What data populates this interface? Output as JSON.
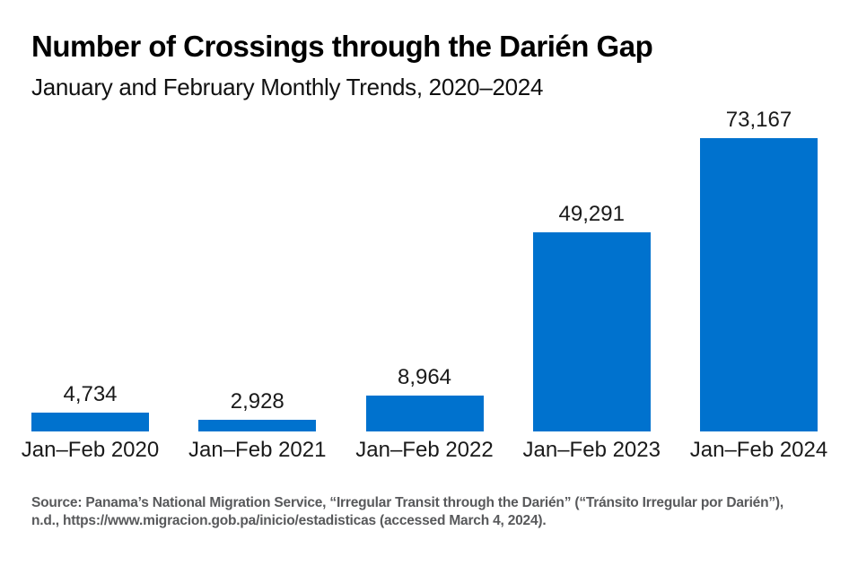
{
  "header": {
    "title": "Number of Crossings through the Darién Gap",
    "subtitle": "January and February Monthly Trends, 2020–2024"
  },
  "chart_data": {
    "type": "bar",
    "title": "Number of Crossings through the Darién Gap",
    "subtitle": "January and February Monthly Trends, 2020–2024",
    "categories": [
      "Jan–Feb 2020",
      "Jan–Feb 2021",
      "Jan–Feb 2022",
      "Jan–Feb 2023",
      "Jan–Feb 2024"
    ],
    "values": [
      4734,
      2928,
      8964,
      49291,
      73167
    ],
    "value_labels": [
      "4,734",
      "2,928",
      "8,964",
      "49,291",
      "73,167"
    ],
    "xlabel": "",
    "ylabel": "",
    "ylim": [
      0,
      73167
    ],
    "grid": false,
    "legend": "none",
    "axis_lines": "none",
    "data_labels_position": "above-bars",
    "bar_color": "#0072ce",
    "label_color": "#1a1a1a"
  },
  "source": {
    "lines": [
      "Source: Panama’s National Migration Service, “Irregular Transit through the Darién” (“Tránsito Irregular por Darién”),",
      "n.d., https://www.migracion.gob.pa/inicio/estadisticas (accessed March 4, 2024)."
    ]
  }
}
